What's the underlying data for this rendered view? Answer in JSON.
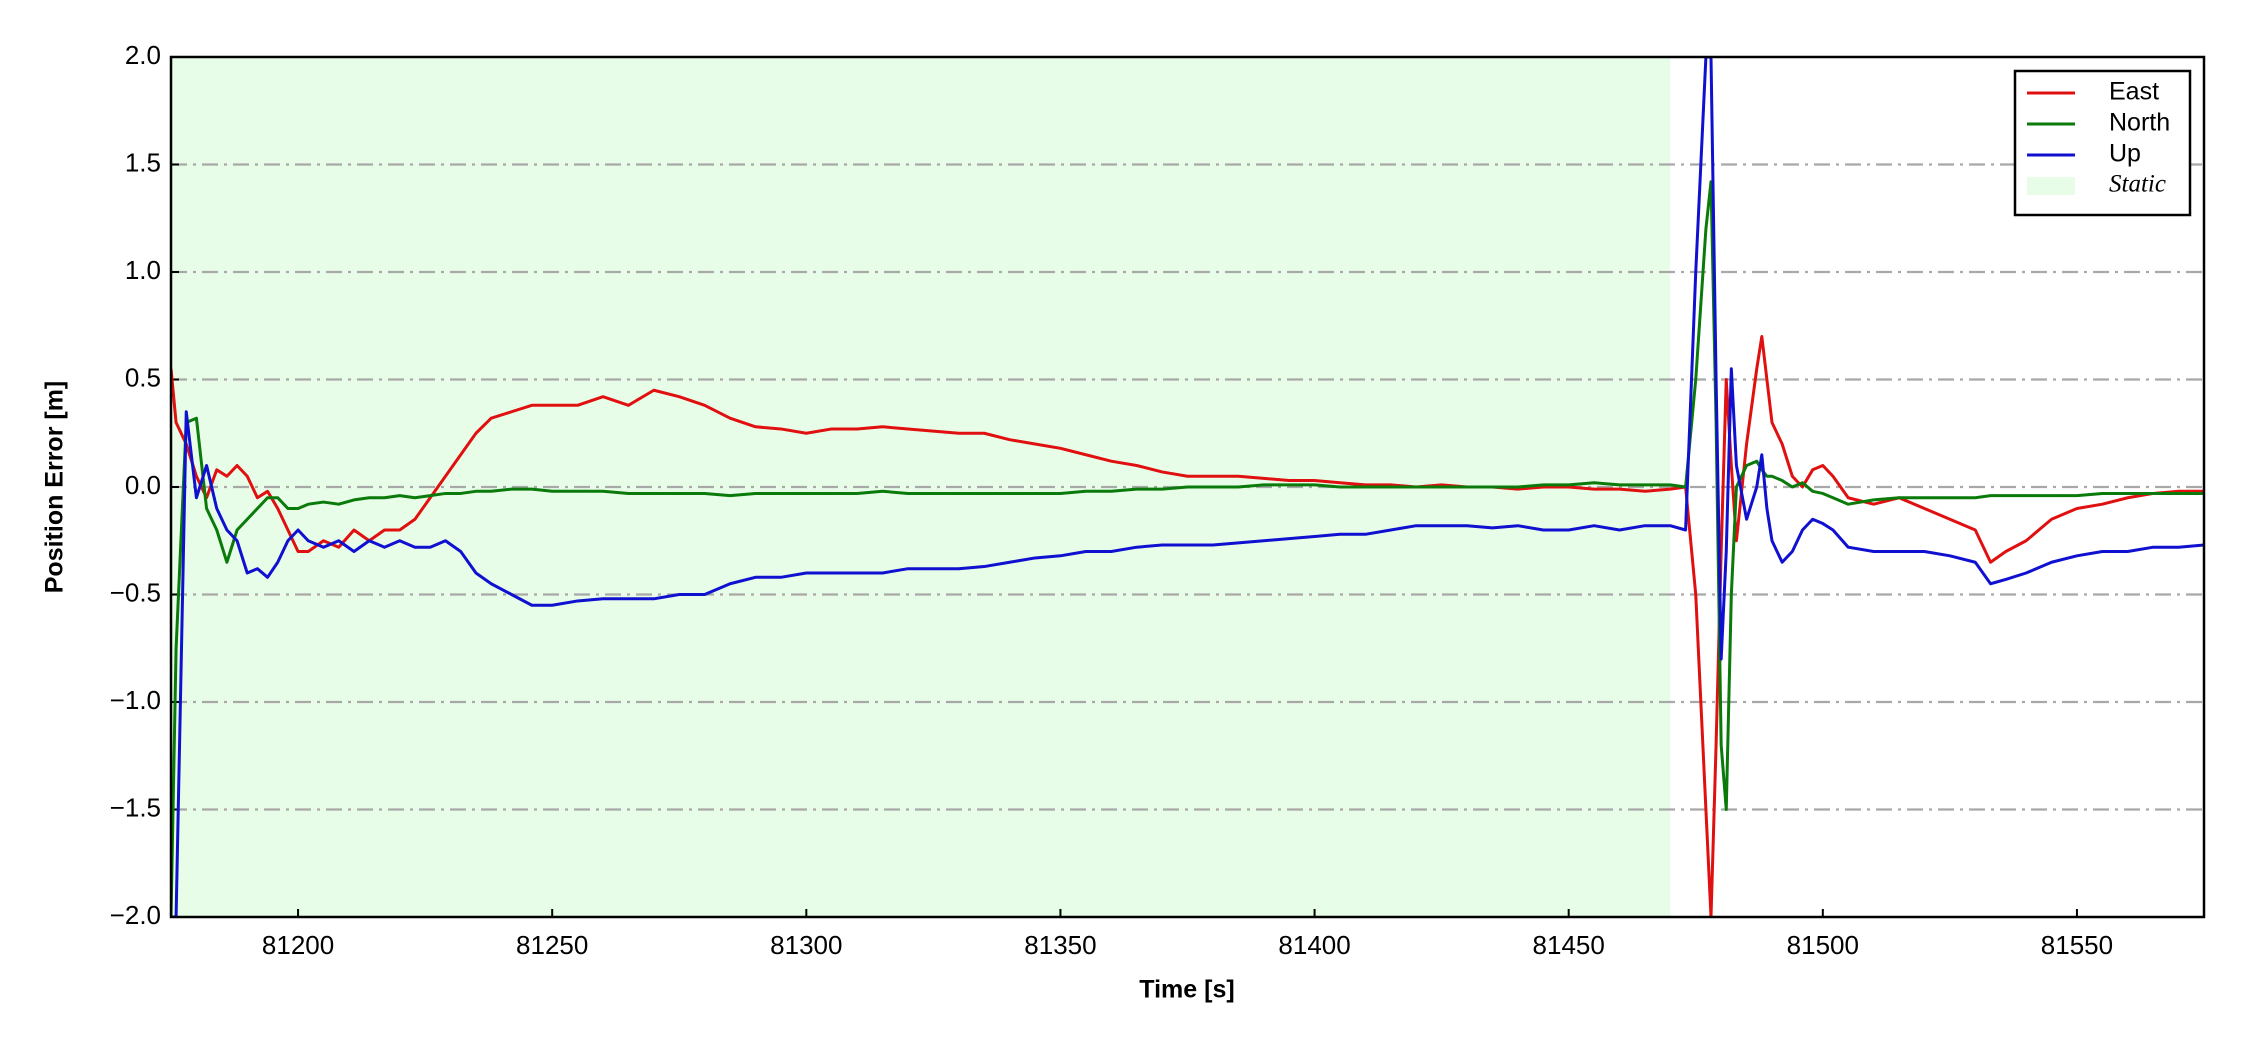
{
  "chart_data": {
    "type": "line",
    "x_label": "Time [s]",
    "y_label": "Position Error [m]",
    "xlim": [
      81175,
      81575
    ],
    "ylim": [
      -2.0,
      2.0
    ],
    "xticks": [
      81200,
      81250,
      81300,
      81350,
      81400,
      81450,
      81500,
      81550
    ],
    "yticks": [
      {
        "value": -2.0,
        "label": "−2.0"
      },
      {
        "value": -1.5,
        "label": "−1.5"
      },
      {
        "value": -1.0,
        "label": "−1.0"
      },
      {
        "value": -0.5,
        "label": "−0.5"
      },
      {
        "value": 0,
        "label": "0.0"
      },
      0.5,
      {
        "value": 1.0,
        "label": "1.0"
      },
      1.5,
      {
        "value": 2.0,
        "label": "2.0"
      }
    ],
    "grid": true,
    "legend_position": "upper-right",
    "shaded_region": {
      "name": "Static",
      "x0": 81175,
      "x1": 81470,
      "color": "#e8fde8"
    },
    "x": [
      81175,
      81176,
      81178,
      81180,
      81182,
      81184,
      81186,
      81188,
      81190,
      81192,
      81194,
      81196,
      81198,
      81200,
      81202,
      81205,
      81208,
      81211,
      81214,
      81217,
      81220,
      81223,
      81226,
      81229,
      81232,
      81235,
      81238,
      81242,
      81246,
      81250,
      81255,
      81260,
      81265,
      81270,
      81275,
      81280,
      81285,
      81290,
      81295,
      81300,
      81305,
      81310,
      81315,
      81320,
      81325,
      81330,
      81335,
      81340,
      81345,
      81350,
      81355,
      81360,
      81365,
      81370,
      81375,
      81380,
      81385,
      81390,
      81395,
      81400,
      81405,
      81410,
      81415,
      81420,
      81425,
      81430,
      81435,
      81440,
      81445,
      81450,
      81455,
      81460,
      81465,
      81470,
      81473,
      81475,
      81477,
      81478,
      81479,
      81480,
      81481,
      81482,
      81483,
      81485,
      81487,
      81488,
      81489,
      81490,
      81492,
      81494,
      81496,
      81498,
      81500,
      81502,
      81505,
      81510,
      81515,
      81520,
      81525,
      81530,
      81533,
      81536,
      81540,
      81545,
      81550,
      81555,
      81560,
      81565,
      81570,
      81575
    ],
    "series": [
      {
        "name": "East",
        "color": "#e01010",
        "values": [
          0.55,
          0.3,
          0.2,
          0.05,
          -0.05,
          0.08,
          0.05,
          0.1,
          0.05,
          -0.05,
          -0.02,
          -0.1,
          -0.2,
          -0.3,
          -0.3,
          -0.25,
          -0.28,
          -0.2,
          -0.25,
          -0.2,
          -0.2,
          -0.15,
          -0.05,
          0.05,
          0.15,
          0.25,
          0.32,
          0.35,
          0.38,
          0.38,
          0.38,
          0.42,
          0.38,
          0.45,
          0.42,
          0.38,
          0.32,
          0.28,
          0.27,
          0.25,
          0.27,
          0.27,
          0.28,
          0.27,
          0.26,
          0.25,
          0.25,
          0.22,
          0.2,
          0.18,
          0.15,
          0.12,
          0.1,
          0.07,
          0.05,
          0.05,
          0.05,
          0.04,
          0.03,
          0.03,
          0.02,
          0.01,
          0.01,
          0.0,
          0.01,
          0.0,
          0.0,
          -0.01,
          0.0,
          0.0,
          -0.01,
          -0.01,
          -0.02,
          -0.01,
          0.0,
          -0.5,
          -1.5,
          -2.0,
          -1.2,
          -0.3,
          0.5,
          0.1,
          -0.25,
          0.2,
          0.55,
          0.7,
          0.5,
          0.3,
          0.2,
          0.05,
          0.0,
          0.08,
          0.1,
          0.05,
          -0.05,
          -0.08,
          -0.05,
          -0.1,
          -0.15,
          -0.2,
          -0.35,
          -0.3,
          -0.25,
          -0.15,
          -0.1,
          -0.08,
          -0.05,
          -0.03,
          -0.02,
          -0.02
        ]
      },
      {
        "name": "North",
        "color": "#0a7a0a",
        "values": [
          -2.0,
          -0.75,
          0.3,
          0.32,
          -0.1,
          -0.2,
          -0.35,
          -0.2,
          -0.15,
          -0.1,
          -0.05,
          -0.05,
          -0.1,
          -0.1,
          -0.08,
          -0.07,
          -0.08,
          -0.06,
          -0.05,
          -0.05,
          -0.04,
          -0.05,
          -0.04,
          -0.03,
          -0.03,
          -0.02,
          -0.02,
          -0.01,
          -0.01,
          -0.02,
          -0.02,
          -0.02,
          -0.03,
          -0.03,
          -0.03,
          -0.03,
          -0.04,
          -0.03,
          -0.03,
          -0.03,
          -0.03,
          -0.03,
          -0.02,
          -0.03,
          -0.03,
          -0.03,
          -0.03,
          -0.03,
          -0.03,
          -0.03,
          -0.02,
          -0.02,
          -0.01,
          -0.01,
          0.0,
          0.0,
          0.0,
          0.01,
          0.01,
          0.01,
          0.0,
          0.0,
          0.0,
          0.0,
          0.0,
          0.0,
          0.0,
          0.0,
          0.01,
          0.01,
          0.02,
          0.01,
          0.01,
          0.01,
          0.0,
          0.5,
          1.2,
          1.42,
          0.3,
          -1.2,
          -1.5,
          -0.5,
          0.0,
          0.1,
          0.12,
          0.08,
          0.05,
          0.05,
          0.03,
          0.0,
          0.02,
          -0.02,
          -0.03,
          -0.05,
          -0.08,
          -0.06,
          -0.05,
          -0.05,
          -0.05,
          -0.05,
          -0.04,
          -0.04,
          -0.04,
          -0.04,
          -0.04,
          -0.03,
          -0.03,
          -0.03,
          -0.03,
          -0.03
        ]
      },
      {
        "name": "Up",
        "color": "#1010d0",
        "values": [
          -2.0,
          -2.0,
          0.35,
          -0.05,
          0.1,
          -0.1,
          -0.2,
          -0.25,
          -0.4,
          -0.38,
          -0.42,
          -0.35,
          -0.25,
          -0.2,
          -0.25,
          -0.28,
          -0.25,
          -0.3,
          -0.25,
          -0.28,
          -0.25,
          -0.28,
          -0.28,
          -0.25,
          -0.3,
          -0.4,
          -0.45,
          -0.5,
          -0.55,
          -0.55,
          -0.53,
          -0.52,
          -0.52,
          -0.52,
          -0.5,
          -0.5,
          -0.45,
          -0.42,
          -0.42,
          -0.4,
          -0.4,
          -0.4,
          -0.4,
          -0.38,
          -0.38,
          -0.38,
          -0.37,
          -0.35,
          -0.33,
          -0.32,
          -0.3,
          -0.3,
          -0.28,
          -0.27,
          -0.27,
          -0.27,
          -0.26,
          -0.25,
          -0.24,
          -0.23,
          -0.22,
          -0.22,
          -0.2,
          -0.18,
          -0.18,
          -0.18,
          -0.19,
          -0.18,
          -0.2,
          -0.2,
          -0.18,
          -0.2,
          -0.18,
          -0.18,
          -0.2,
          1.0,
          2.0,
          2.0,
          0.5,
          -0.8,
          -0.3,
          0.55,
          0.1,
          -0.15,
          0.0,
          0.15,
          -0.1,
          -0.25,
          -0.35,
          -0.3,
          -0.2,
          -0.15,
          -0.17,
          -0.2,
          -0.28,
          -0.3,
          -0.3,
          -0.3,
          -0.32,
          -0.35,
          -0.45,
          -0.43,
          -0.4,
          -0.35,
          -0.32,
          -0.3,
          -0.3,
          -0.28,
          -0.28,
          -0.27
        ]
      }
    ]
  }
}
